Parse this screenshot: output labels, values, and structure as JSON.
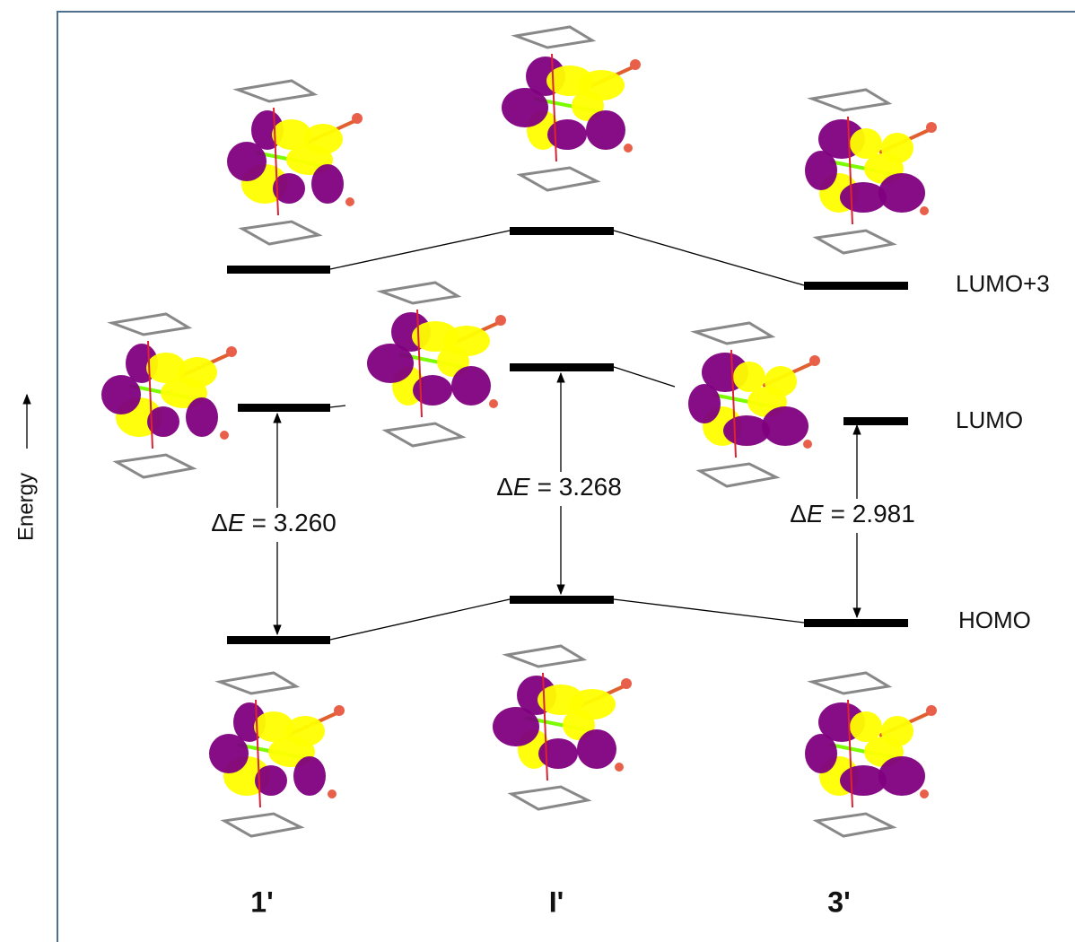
{
  "axis_label": "Energy",
  "levels": [
    "LUMO+3",
    "LUMO",
    "HOMO"
  ],
  "gaps": [
    {
      "symbol": "Δ",
      "variable": "E",
      "value_label": "= 3.260"
    },
    {
      "symbol": "Δ",
      "variable": "E",
      "value_label": "= 3.268"
    },
    {
      "symbol": "Δ",
      "variable": "E",
      "value_label": "= 2.981"
    }
  ],
  "compounds": [
    "1'",
    "I'",
    "3'"
  ]
}
